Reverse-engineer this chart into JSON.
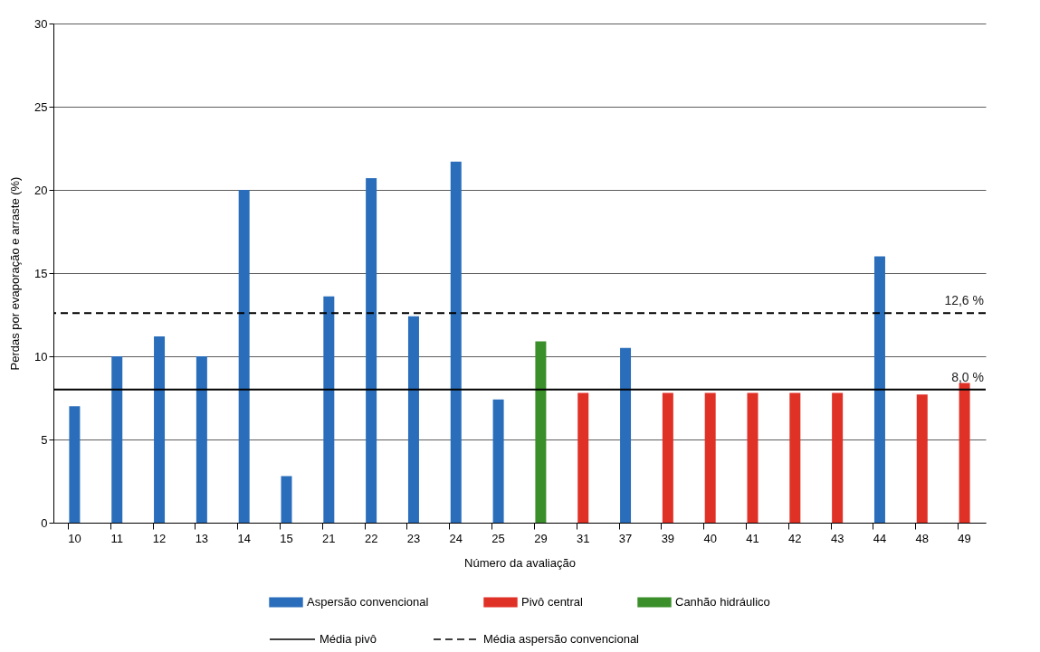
{
  "chart_data": {
    "type": "bar",
    "xlabel": "Número da avaliação",
    "ylabel": "Perdas por evaporação e arraste (%)",
    "categories": [
      "10",
      "11",
      "12",
      "13",
      "14",
      "15",
      "21",
      "22",
      "23",
      "24",
      "25",
      "29",
      "31",
      "37",
      "39",
      "40",
      "41",
      "42",
      "43",
      "44",
      "48",
      "49"
    ],
    "series": [
      {
        "name": "Aspersão convencional",
        "color": "#2a6ebb",
        "values": [
          7.0,
          10.0,
          11.2,
          10.0,
          20.0,
          2.8,
          13.6,
          20.7,
          12.4,
          21.7,
          7.4,
          null,
          null,
          10.5,
          null,
          null,
          null,
          null,
          null,
          16.0,
          null,
          null
        ]
      },
      {
        "name": "Pivô central",
        "color": "#e03127",
        "values": [
          null,
          null,
          null,
          null,
          null,
          null,
          null,
          null,
          null,
          null,
          null,
          null,
          7.8,
          null,
          7.8,
          7.8,
          7.8,
          7.8,
          7.8,
          null,
          7.7,
          8.4
        ]
      },
      {
        "name": "Canhão hidráulico",
        "color": "#3a8f2a",
        "values": [
          null,
          null,
          null,
          null,
          null,
          null,
          null,
          null,
          null,
          null,
          null,
          10.9,
          null,
          null,
          null,
          null,
          null,
          null,
          null,
          null,
          null,
          null
        ]
      }
    ],
    "ylim": [
      0,
      30
    ],
    "yticks": [
      0,
      5,
      10,
      15,
      20,
      25,
      30
    ],
    "grid": "y",
    "legend": "bottom",
    "ref_lines": [
      {
        "axis": "y",
        "value": 8.0,
        "label": "Média pivô",
        "color": "#000000",
        "line_style": "solid"
      },
      {
        "axis": "y",
        "value": 12.6,
        "label": "Média aspersão convencional",
        "color": "#000000",
        "line_style": "dashed"
      }
    ],
    "annotations": [
      {
        "text": "12,6 %",
        "x": "49",
        "y": 12.6
      },
      {
        "text": "8,0 %",
        "x": "49",
        "y": 8.0
      }
    ]
  }
}
